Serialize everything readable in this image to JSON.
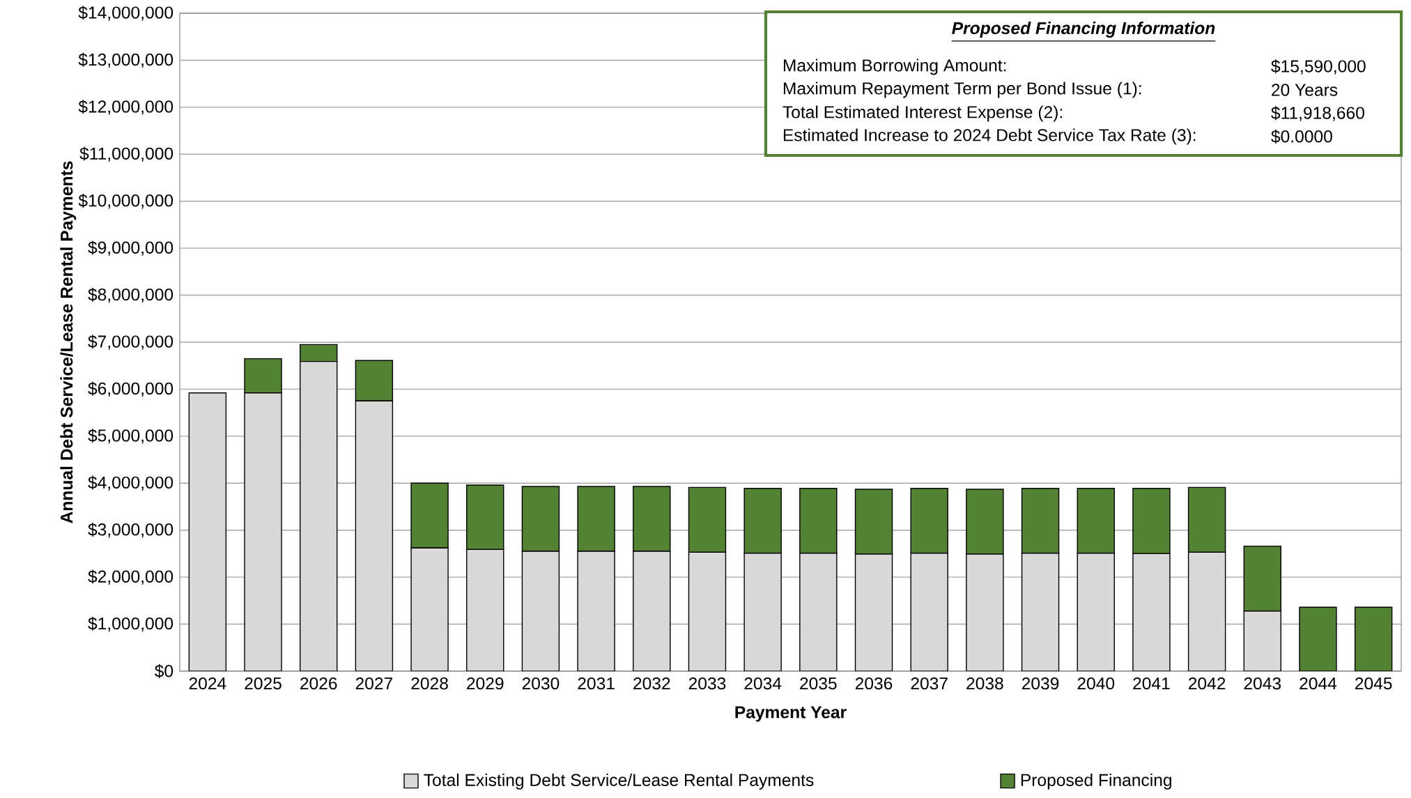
{
  "chart_data": {
    "type": "bar",
    "stacked": true,
    "xlabel": "Payment Year",
    "ylabel": "Annual Debt Service/Lease Rental Payments",
    "categories": [
      "2024",
      "2025",
      "2026",
      "2027",
      "2028",
      "2029",
      "2030",
      "2031",
      "2032",
      "2033",
      "2034",
      "2035",
      "2036",
      "2037",
      "2038",
      "2039",
      "2040",
      "2041",
      "2042",
      "2043",
      "2044",
      "2045"
    ],
    "series": [
      {
        "name": "Total Existing Debt Service/Lease Rental Payments",
        "color": "#d9d9d9",
        "values": [
          5920000,
          5920000,
          6590000,
          5750000,
          2620000,
          2590000,
          2550000,
          2550000,
          2550000,
          2530000,
          2510000,
          2510000,
          2490000,
          2510000,
          2490000,
          2510000,
          2510000,
          2500000,
          2530000,
          1280000,
          0,
          0
        ]
      },
      {
        "name": "Proposed Financing",
        "color": "#548235",
        "values": [
          0,
          730000,
          360000,
          860000,
          1380000,
          1370000,
          1380000,
          1380000,
          1380000,
          1380000,
          1380000,
          1380000,
          1380000,
          1380000,
          1380000,
          1380000,
          1380000,
          1390000,
          1380000,
          1380000,
          1360000,
          1360000
        ]
      }
    ],
    "ylim": [
      0,
      14000000
    ],
    "yticks": [
      {
        "value": 0,
        "label": "$0"
      },
      {
        "value": 1000000,
        "label": "$1,000,000"
      },
      {
        "value": 2000000,
        "label": "$2,000,000"
      },
      {
        "value": 3000000,
        "label": "$3,000,000"
      },
      {
        "value": 4000000,
        "label": "$4,000,000"
      },
      {
        "value": 5000000,
        "label": "$5,000,000"
      },
      {
        "value": 6000000,
        "label": "$6,000,000"
      },
      {
        "value": 7000000,
        "label": "$7,000,000"
      },
      {
        "value": 8000000,
        "label": "$8,000,000"
      },
      {
        "value": 9000000,
        "label": "$9,000,000"
      },
      {
        "value": 10000000,
        "label": "$10,000,000"
      },
      {
        "value": 11000000,
        "label": "$11,000,000"
      },
      {
        "value": 12000000,
        "label": "$12,000,000"
      },
      {
        "value": 13000000,
        "label": "$13,000,000"
      },
      {
        "value": 14000000,
        "label": "$14,000,000"
      }
    ],
    "grid": "y",
    "legend": "bottom",
    "annotations": [
      "Proposed Financing Information",
      "Maximum Borrowing Amount:",
      "$15,590,000",
      "Maximum Repayment Term per Bond Issue (1):",
      "20 Years",
      "Total Estimated Interest Expense (2):",
      "$11,918,660",
      "Estimated Increase to 2024 Debt Service Tax Rate (3):",
      "$0.0000"
    ]
  }
}
